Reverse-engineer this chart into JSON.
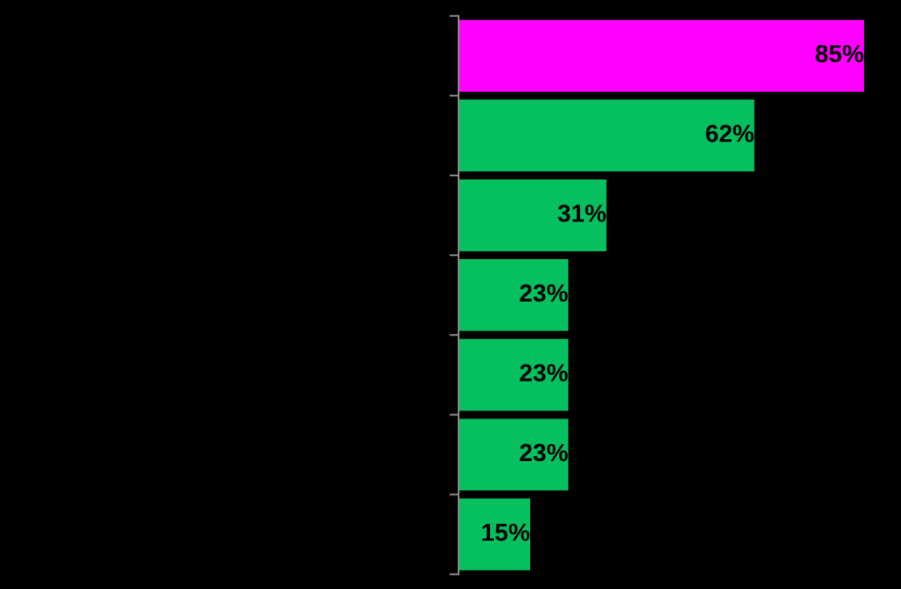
{
  "chart_data": {
    "type": "bar",
    "orientation": "horizontal",
    "categories": [
      null,
      null,
      null,
      null,
      null,
      null,
      null
    ],
    "values": [
      85,
      62,
      31,
      23,
      23,
      23,
      15
    ],
    "colors": [
      "#ff00ff",
      "#06bf5f",
      "#06bf5f",
      "#06bf5f",
      "#06bf5f",
      "#06bf5f",
      "#06bf5f"
    ],
    "value_labels": [
      "85%",
      "62%",
      "31%",
      "23%",
      "23%",
      "23%",
      "15%"
    ],
    "grid": false,
    "legend": false
  }
}
